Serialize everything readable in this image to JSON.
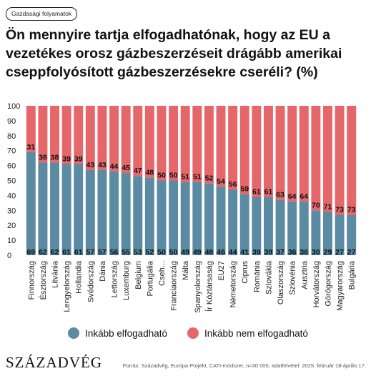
{
  "tag": "Gazdasági folyamatok",
  "title": "Ön mennyire tartja elfogadhatónak, hogy az EU a vezetékes orosz gázbeszerzéseit drágább amerikai cseppfolyósított gázbeszerzésekre cseréli? (%)",
  "footer": {
    "logo": "SZÁZADVÉG",
    "source": "Forrás: Századvég, Európa Projekt, CATI-módszer, n=30 000, adatfelvétel: 2025. február 18-április 17."
  },
  "colors": {
    "accept": "#5b8aa3",
    "reject": "#e6676a"
  },
  "chart_data": {
    "type": "bar",
    "stacked": true,
    "categories": [
      "Finnország",
      "Észtország",
      "Litvánia",
      "Lengyelország",
      "Hollandia",
      "Svédország",
      "Dánia",
      "Lettország",
      "Luxemburg",
      "Belgium",
      "Portugália",
      "Cseh...",
      "Franciaország",
      "Málta",
      "Spanyolország",
      "Ír Köztársaság",
      "EU27",
      "Németország",
      "Ciprus",
      "Románia",
      "Szlovákia",
      "Olaszország",
      "Szlovénia",
      "Ausztria",
      "Horvátország",
      "Görögország",
      "Magyarország",
      "Bulgária"
    ],
    "series": [
      {
        "name": "Inkább elfogadható",
        "values": [
          69,
          62,
          62,
          61,
          61,
          57,
          57,
          56,
          55,
          53,
          52,
          50,
          50,
          49,
          49,
          48,
          46,
          44,
          41,
          39,
          39,
          37,
          36,
          36,
          30,
          29,
          27,
          27
        ]
      },
      {
        "name": "Inkább nem elfogadható",
        "values": [
          31,
          38,
          38,
          39,
          39,
          43,
          43,
          44,
          45,
          47,
          48,
          50,
          50,
          51,
          51,
          52,
          54,
          56,
          59,
          61,
          61,
          63,
          64,
          64,
          70,
          71,
          73,
          73
        ]
      }
    ],
    "ylim": [
      0,
      100
    ],
    "yticks": [
      0,
      10,
      20,
      30,
      40,
      50,
      60,
      70,
      80,
      90,
      100
    ],
    "grid": false,
    "legend": "bottom"
  }
}
